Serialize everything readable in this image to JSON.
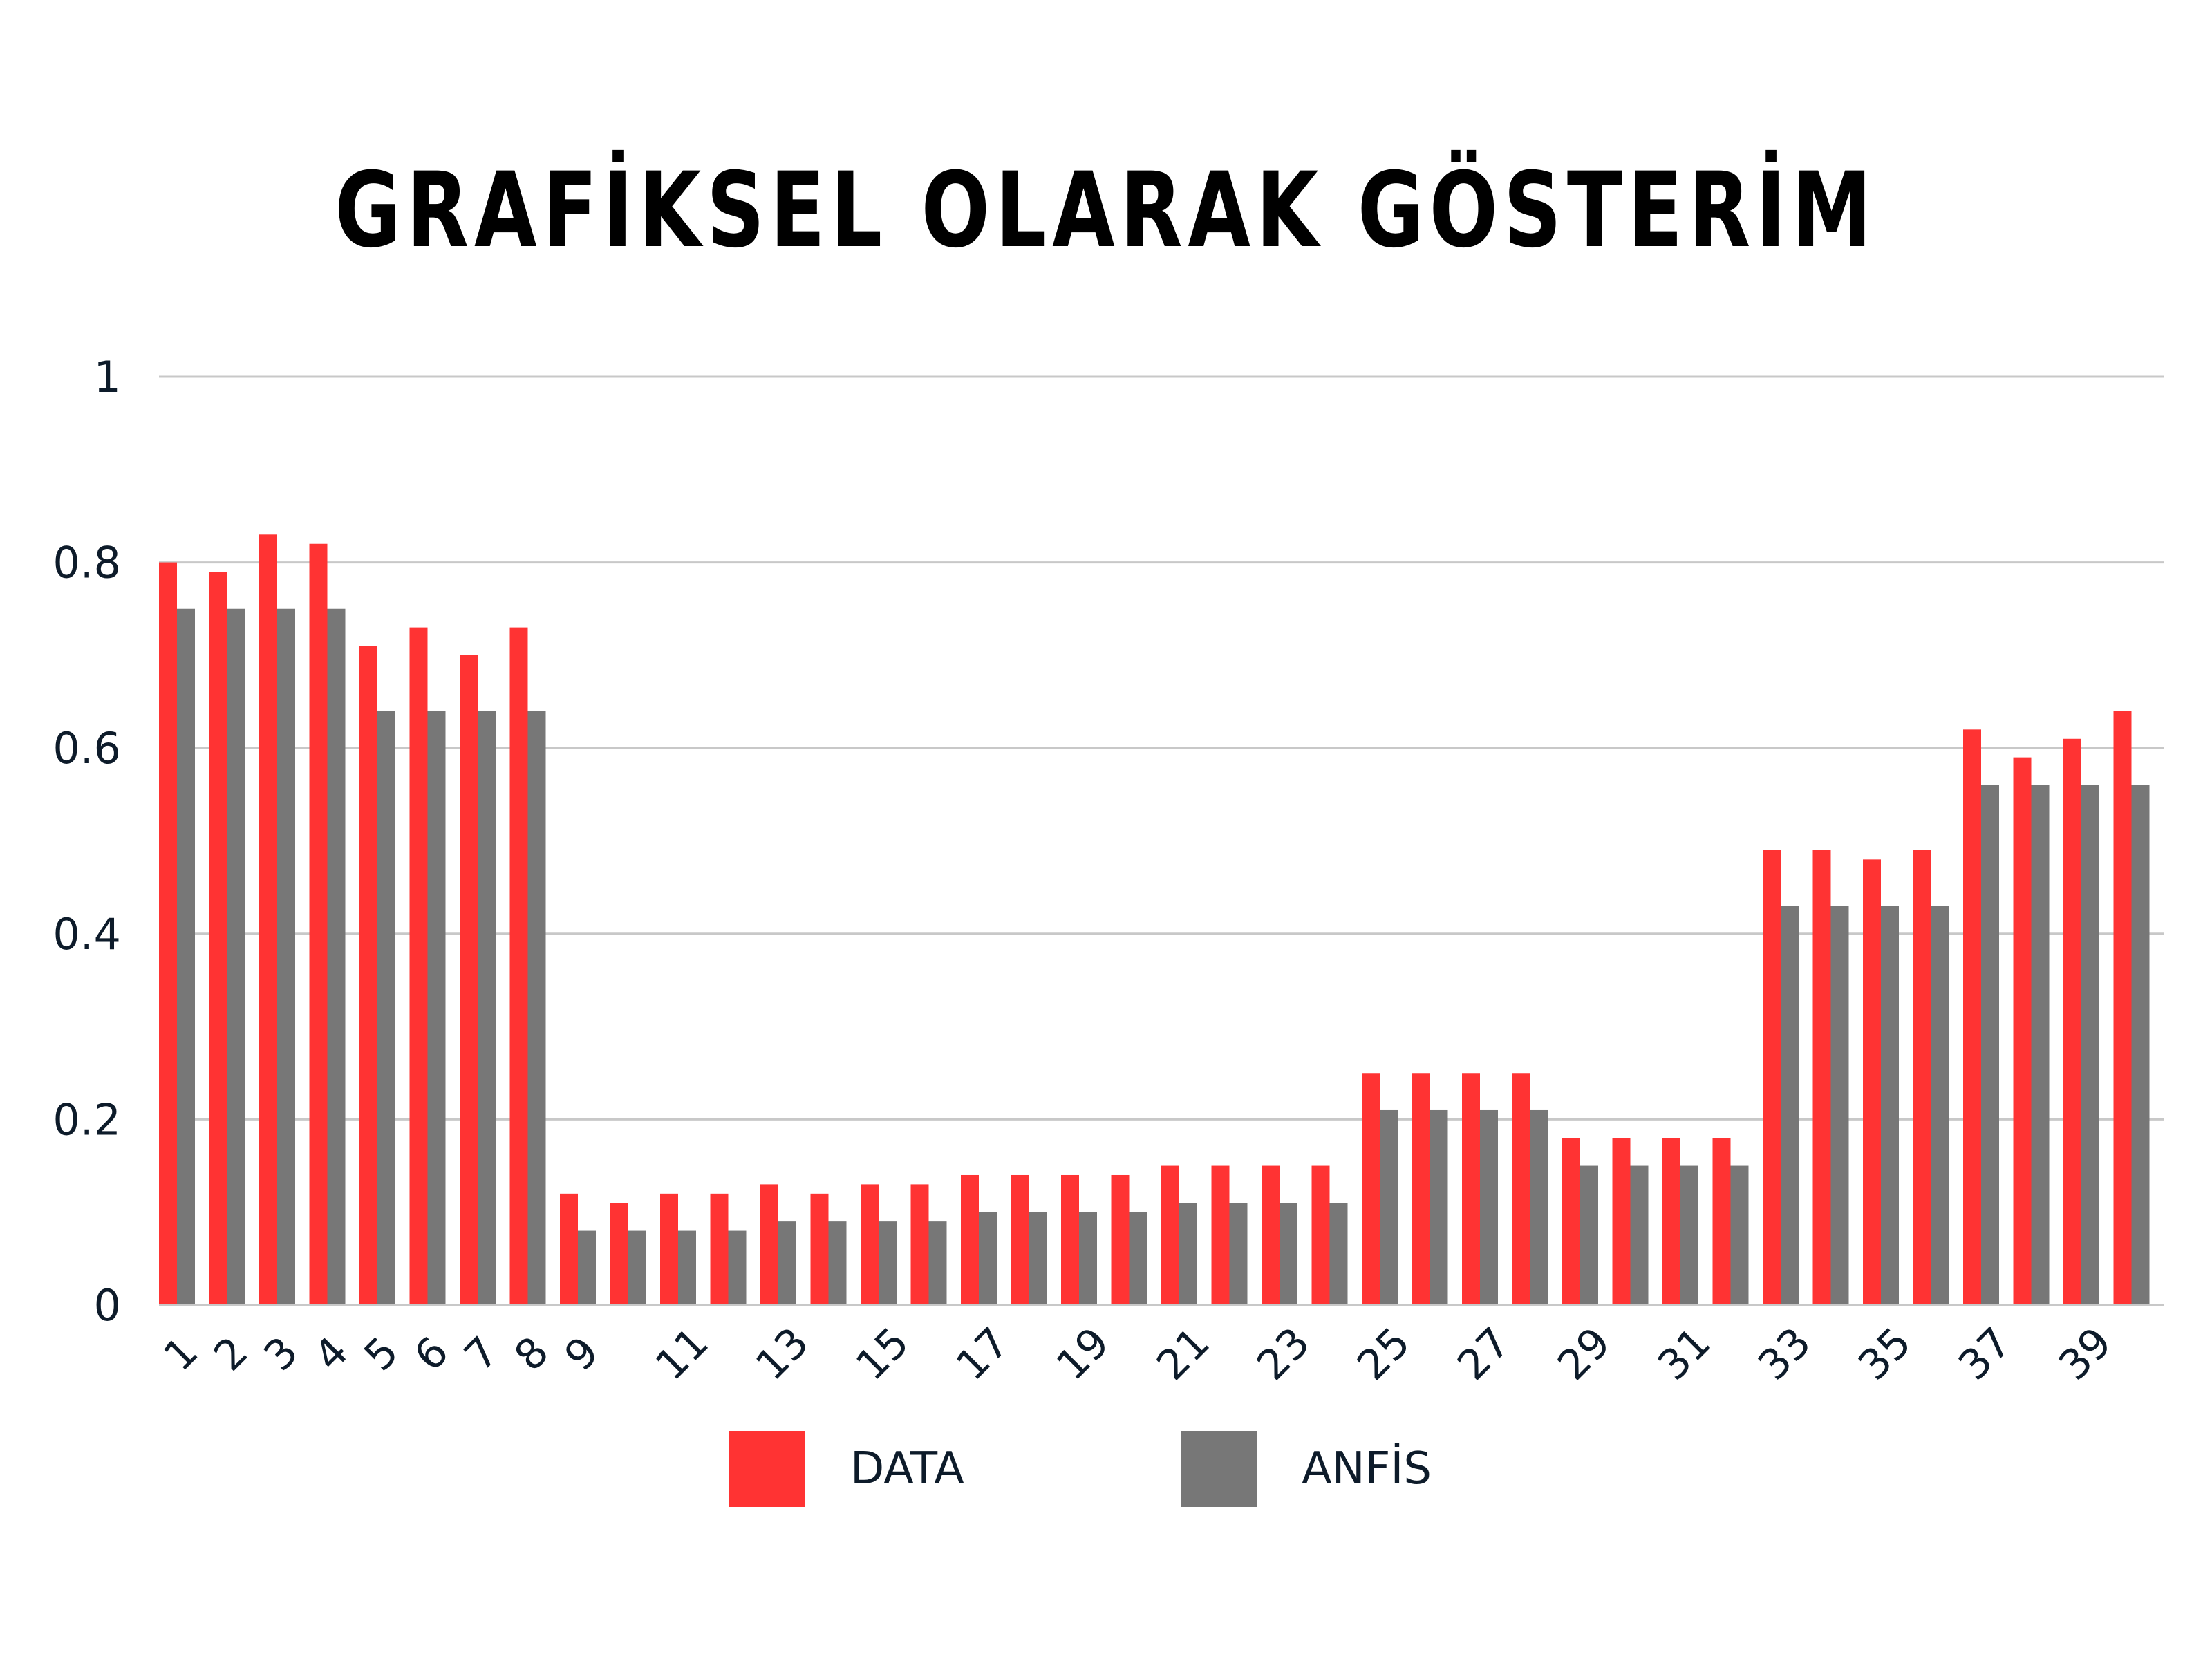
{
  "chart_data": {
    "type": "bar",
    "title": "GRAFİKSEL OLARAK GÖSTERİM",
    "xlabel": "",
    "ylabel": "",
    "ylim": [
      0,
      1
    ],
    "yticks": [
      "0",
      "0.2",
      "0.4",
      "0.6",
      "0.8",
      "1"
    ],
    "grid": true,
    "legend_position": "bottom",
    "categories": [
      1,
      2,
      3,
      4,
      5,
      6,
      7,
      8,
      9,
      10,
      11,
      12,
      13,
      14,
      15,
      16,
      17,
      18,
      19,
      20,
      21,
      22,
      23,
      24,
      25,
      26,
      27,
      28,
      29,
      30,
      31,
      32,
      33,
      34,
      35,
      36,
      37,
      38,
      39,
      40
    ],
    "x_tick_labels": [
      "1",
      "2",
      "3",
      "4",
      "5",
      "6",
      "7",
      "8",
      "9",
      "",
      "11",
      "",
      "13",
      "",
      "15",
      "",
      "17",
      "",
      "19",
      "",
      "21",
      "",
      "23",
      "",
      "25",
      "",
      "27",
      "",
      "29",
      "",
      "31",
      "",
      "33",
      "",
      "35",
      "",
      "37",
      "",
      "39",
      ""
    ],
    "series": [
      {
        "name": "DATA",
        "color": "#ff3333",
        "values": [
          0.8,
          0.79,
          0.83,
          0.82,
          0.71,
          0.73,
          0.7,
          0.73,
          0.12,
          0.11,
          0.12,
          0.12,
          0.13,
          0.12,
          0.13,
          0.13,
          0.14,
          0.14,
          0.14,
          0.14,
          0.15,
          0.15,
          0.15,
          0.15,
          0.25,
          0.25,
          0.25,
          0.25,
          0.18,
          0.18,
          0.18,
          0.18,
          0.49,
          0.49,
          0.48,
          0.49,
          0.62,
          0.59,
          0.61,
          0.64
        ]
      },
      {
        "name": "ANFİS",
        "color": "#777777",
        "values": [
          0.75,
          0.75,
          0.75,
          0.75,
          0.64,
          0.64,
          0.64,
          0.64,
          0.08,
          0.08,
          0.08,
          0.08,
          0.09,
          0.09,
          0.09,
          0.09,
          0.1,
          0.1,
          0.1,
          0.1,
          0.11,
          0.11,
          0.11,
          0.11,
          0.21,
          0.21,
          0.21,
          0.21,
          0.15,
          0.15,
          0.15,
          0.15,
          0.43,
          0.43,
          0.43,
          0.43,
          0.56,
          0.56,
          0.56,
          0.56
        ]
      }
    ]
  }
}
